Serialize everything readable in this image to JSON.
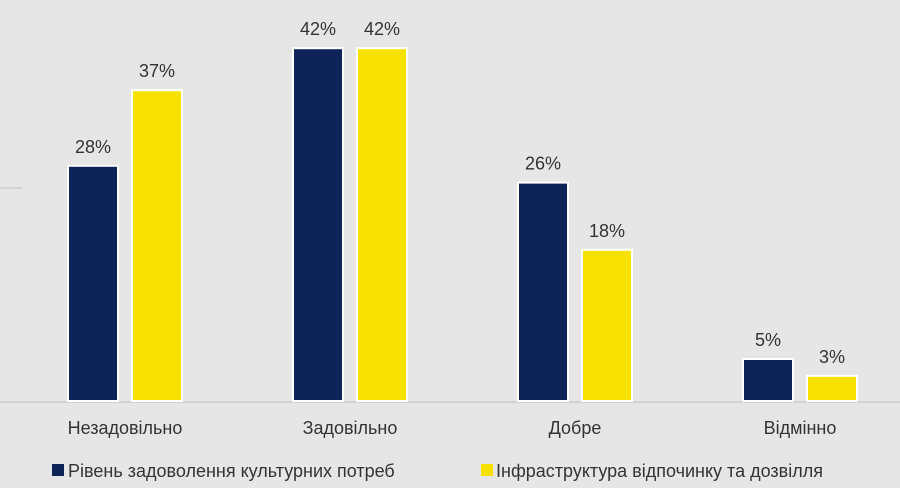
{
  "chart_data": {
    "type": "bar",
    "categories": [
      "Незадовільно",
      "Задовільно",
      "Добре",
      "Відмінно"
    ],
    "series": [
      {
        "name": "Рівень задоволення культурних потреб",
        "values": [
          28,
          42,
          26,
          5
        ],
        "labels": [
          "28%",
          "42%",
          "26%",
          "5%"
        ],
        "color": "#0e2358"
      },
      {
        "name": "Інфраструктура відпочинку та дозвілля",
        "values": [
          37,
          42,
          18,
          3
        ],
        "labels": [
          "37%",
          "42%",
          "18%",
          "3%"
        ],
        "color": "#f7e100"
      }
    ],
    "ylim": [
      0,
      45
    ],
    "legend_position": "bottom",
    "grid": false
  }
}
